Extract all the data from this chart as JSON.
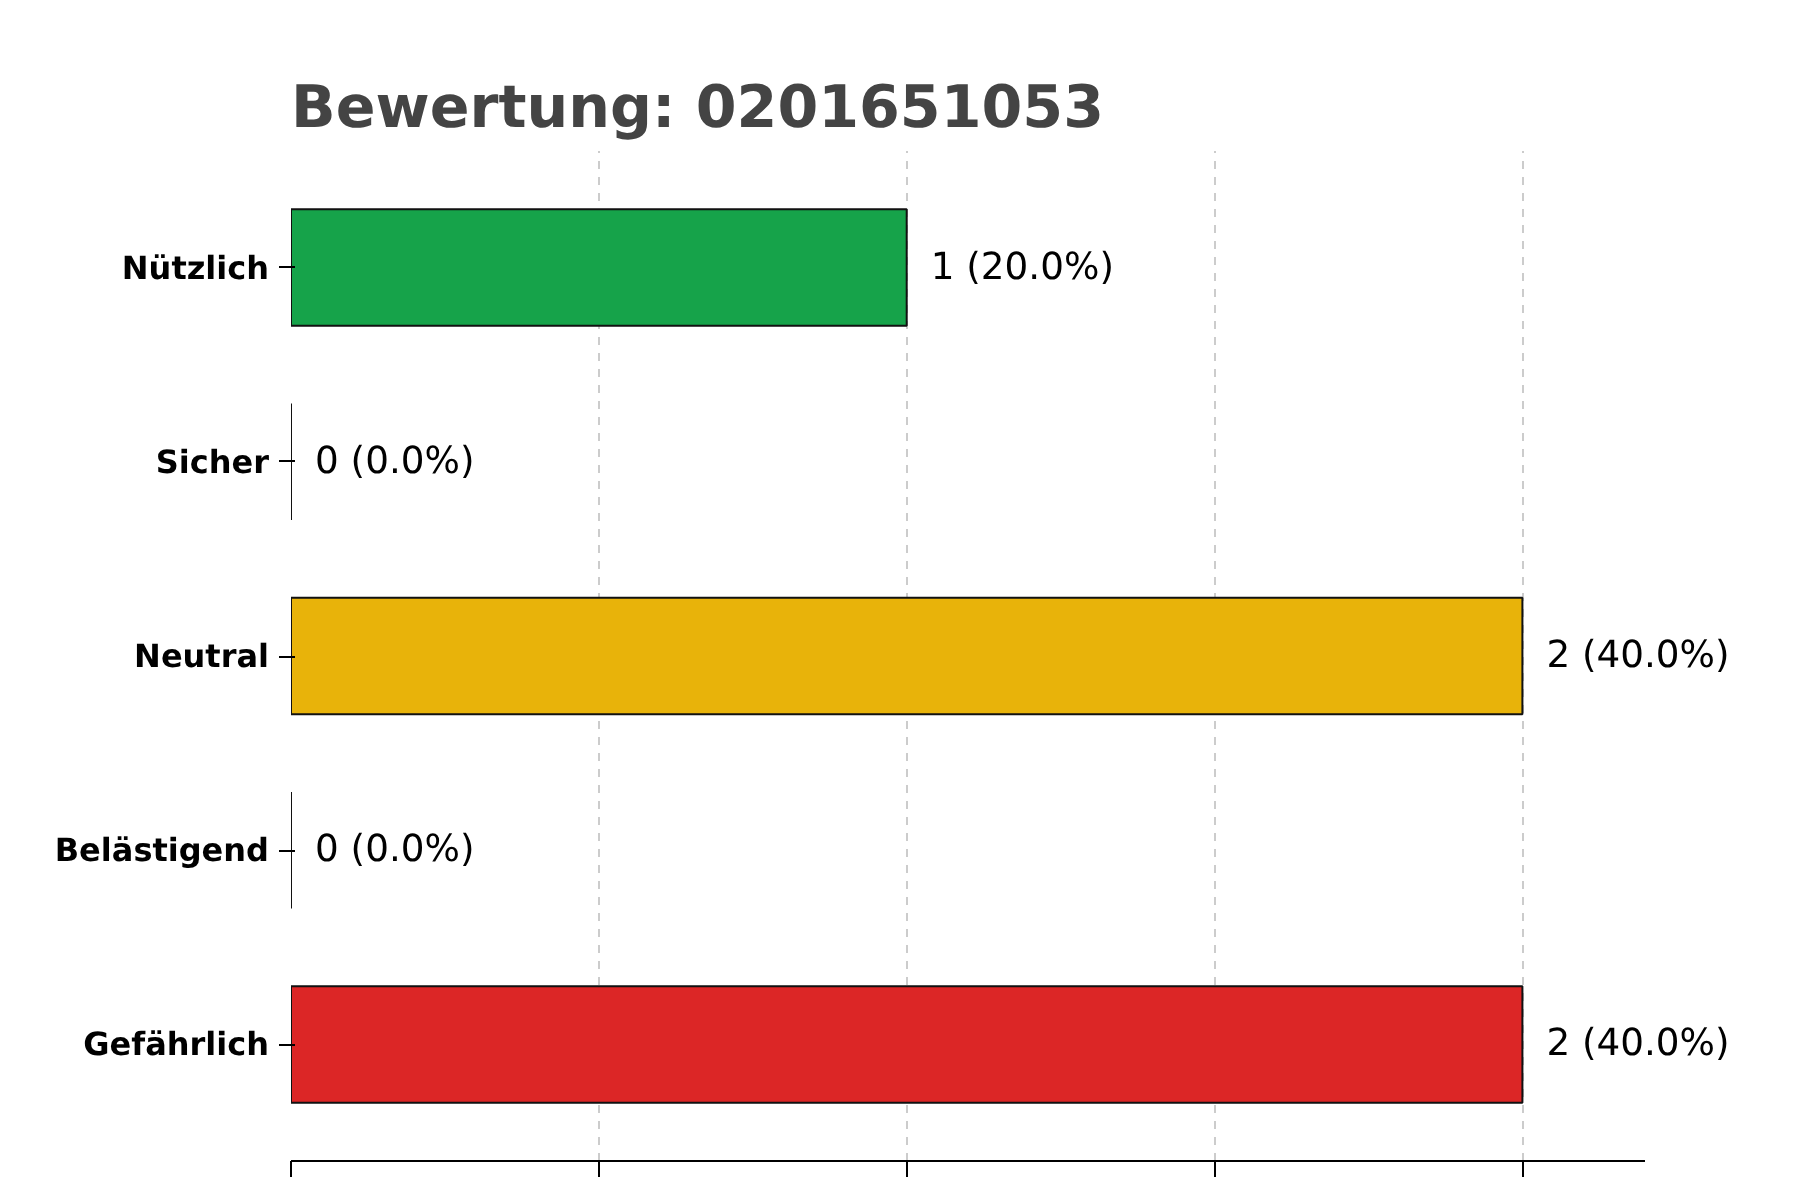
{
  "chart_data": {
    "type": "bar",
    "orientation": "horizontal",
    "title": "Bewertung: 0201651053",
    "categories": [
      "Nützlich",
      "Sicher",
      "Neutral",
      "Belästigend",
      "Gefährlich"
    ],
    "values": [
      1,
      0,
      2,
      0,
      2
    ],
    "colors": [
      "#16a34a",
      "#111111",
      "#e8b30a",
      "#111111",
      "#dc2626"
    ],
    "value_labels": [
      "1 (20.0%)",
      "0 (0.0%)",
      "2 (40.0%)",
      "0 (0.0%)",
      "2 (40.0%)"
    ],
    "grid": "x",
    "tick_labels": "y"
  }
}
